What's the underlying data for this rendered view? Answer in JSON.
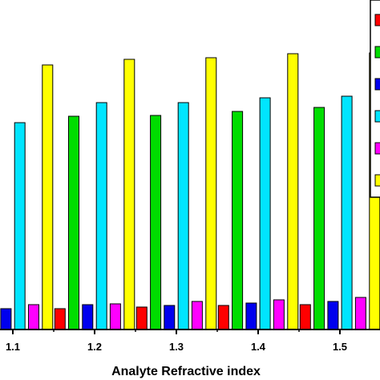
{
  "chart_data": {
    "type": "bar",
    "title": "",
    "xlabel": "Analyte Refractive index",
    "ylabel": "",
    "categories": [
      "1.1",
      "1.2",
      "1.3",
      "1.4",
      "1.5"
    ],
    "series": [
      {
        "color": "#ff0000",
        "values": [
          null,
          26,
          28,
          30,
          31
        ]
      },
      {
        "color": "#00dd00",
        "values": [
          263,
          266,
          267,
          272,
          277
        ]
      },
      {
        "color": "#0000ee",
        "values": [
          26,
          31,
          30,
          33,
          35
        ]
      },
      {
        "color": "#00e5ff",
        "values": [
          258,
          283,
          283,
          289,
          291
        ]
      },
      {
        "color": "#ff00ff",
        "values": [
          31,
          32,
          35,
          37,
          40
        ]
      },
      {
        "color": "#ffff00",
        "values": [
          330,
          337,
          339,
          344,
          345
        ]
      }
    ],
    "ylim": [
      0,
      410
    ],
    "grid": false,
    "legend": "right"
  }
}
